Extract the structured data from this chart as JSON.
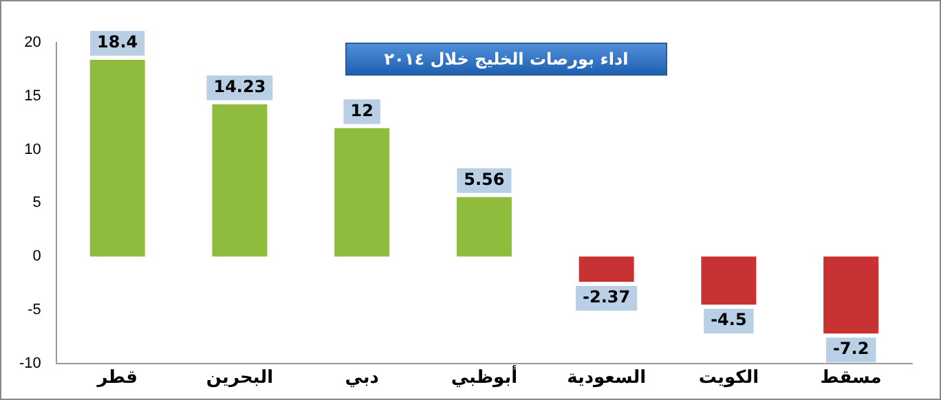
{
  "chart_data": {
    "type": "bar",
    "title": "اداء بورصات الخليج  خلال ٢٠١٤",
    "categories": [
      "قطر",
      "البحرين",
      "دبي",
      "أبوظبي",
      "السعودية",
      "الكويت",
      "مسقط"
    ],
    "values": [
      18.4,
      14.23,
      12,
      5.56,
      -2.37,
      -4.5,
      -7.2
    ],
    "colors": [
      "#8fbc3c",
      "#8fbc3c",
      "#8fbc3c",
      "#8fbc3c",
      "#c83232",
      "#c83232",
      "#c83232"
    ],
    "ylim": [
      -10,
      20
    ],
    "yticks": [
      -10,
      -5,
      0,
      5,
      10,
      15,
      20
    ],
    "grid": false,
    "legend": false,
    "data_labels": true
  }
}
